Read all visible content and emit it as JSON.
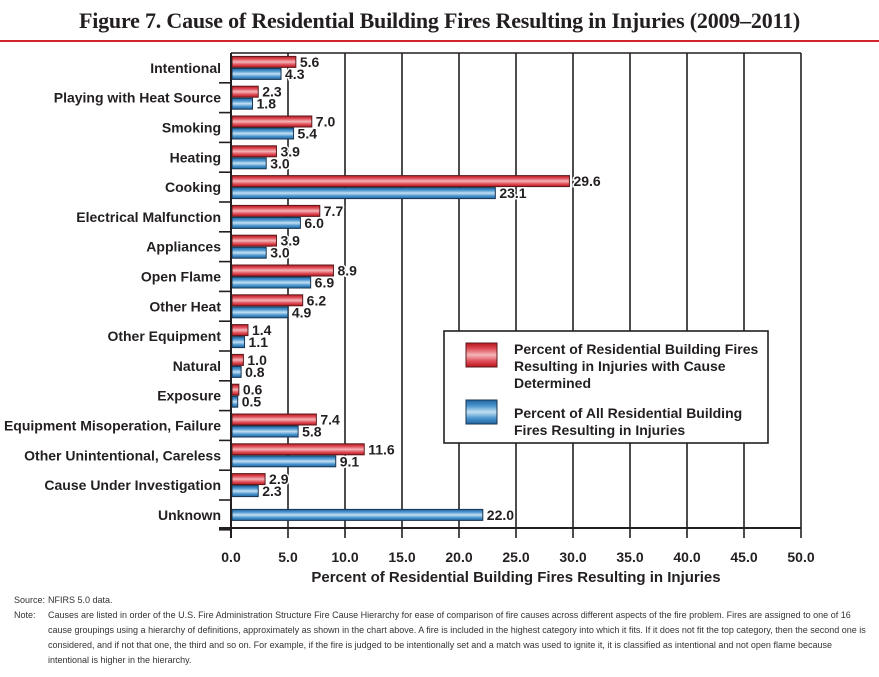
{
  "title": "Figure 7. Cause of Residential Building Fires Resulting in Injuries (2009–2011)",
  "colors": {
    "title_rule": "#d2232a",
    "series_red": "#d2232a",
    "series_blue": "#2a7ab8",
    "axis": "#231f20"
  },
  "chart_data": {
    "type": "bar",
    "orientation": "horizontal",
    "title": "Figure 7. Cause of Residential Building Fires Resulting in Injuries (2009–2011)",
    "xlabel": "Percent of Residential Building Fires Resulting in Injuries",
    "ylabel": "",
    "xlim": [
      0,
      50
    ],
    "xticks": [
      "0.0",
      "5.0",
      "10.0",
      "15.0",
      "20.0",
      "25.0",
      "30.0",
      "35.0",
      "40.0",
      "45.0",
      "50.0"
    ],
    "grid": "vertical",
    "legend_position": "center-right",
    "categories": [
      "Intentional",
      "Playing with Heat Source",
      "Smoking",
      "Heating",
      "Cooking",
      "Electrical Malfunction",
      "Appliances",
      "Open Flame",
      "Other Heat",
      "Other Equipment",
      "Natural",
      "Exposure",
      "Equipment Misoperation, Failure",
      "Other Unintentional, Careless",
      "Cause Under Investigation",
      "Unknown"
    ],
    "series": [
      {
        "name": "Percent of Residential Building Fires Resulting in Injuries with Cause Determined",
        "color": "#d2232a",
        "values": [
          5.6,
          2.3,
          7.0,
          3.9,
          29.6,
          7.7,
          3.9,
          8.9,
          6.2,
          1.4,
          1.0,
          0.6,
          7.4,
          11.6,
          2.9,
          null
        ],
        "labels": [
          "5.6",
          "2.3",
          "7.0",
          "3.9",
          "29.6",
          "7.7",
          "3.9",
          "8.9",
          "6.2",
          "1.4",
          "1.0",
          "0.6",
          "7.4",
          "11.6",
          "2.9",
          ""
        ]
      },
      {
        "name": "Percent of All Residential Building Fires Resulting in Injuries",
        "color": "#2a7ab8",
        "values": [
          4.3,
          1.8,
          5.4,
          3.0,
          23.1,
          6.0,
          3.0,
          6.9,
          4.9,
          1.1,
          0.8,
          0.5,
          5.8,
          9.1,
          2.3,
          22.0
        ],
        "labels": [
          "4.3",
          "1.8",
          "5.4",
          "3.0",
          "23.1",
          "6.0",
          "3.0",
          "6.9",
          "4.9",
          "1.1",
          "0.8",
          "0.5",
          "5.8",
          "9.1",
          "2.3",
          "22.0"
        ]
      }
    ],
    "legend": [
      {
        "lines": [
          "Percent of Residential Building Fires",
          "Resulting in Injuries with Cause",
          "Determined"
        ]
      },
      {
        "lines": [
          "Percent of All Residential Building",
          "Fires Resulting in Injuries"
        ]
      }
    ]
  },
  "footnotes": {
    "source_key": "Source:",
    "source_text": "NFIRS 5.0 data.",
    "note_key": "Note:",
    "note_text": "Causes are listed in order of the U.S. Fire Administration Structure Fire Cause Hierarchy for ease of comparison of fire causes across different aspects of the fire problem. Fires are assigned to one of 16 cause groupings using a hierarchy of definitions, approximately as shown in the chart above. A fire is included in the highest category into which it fits. If it does not fit the top category, then the second one is considered, and if not that one, the third and so on. For example, if the fire is judged to be intentionally set and a match was used to ignite it, it is classified as intentional and not open flame because intentional is higher in the hierarchy."
  }
}
